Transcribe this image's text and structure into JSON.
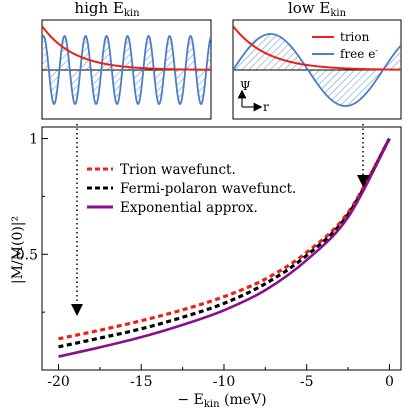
{
  "insets": {
    "left": {
      "title": "high E",
      "title_sub": "kin"
    },
    "right": {
      "title": "low E",
      "title_sub": "kin",
      "legend": [
        {
          "name": "trion",
          "color": "#e8221b"
        },
        {
          "name": "free e",
          "sup": "-",
          "color": "#4a7ec7"
        }
      ],
      "axis_y": "Ψ",
      "axis_x": "r"
    }
  },
  "chart_data": {
    "type": "line",
    "xlabel": "− E",
    "xlabel_sub": "kin",
    "xlabel_unit": " (meV)",
    "ylabel": "|M/M(0)|²",
    "xlim": [
      -21,
      0.7
    ],
    "ylim": [
      0,
      1.05
    ],
    "xticks": [
      -20,
      -15,
      -10,
      -5,
      0
    ],
    "xtick_labels": [
      "-20",
      "-15",
      "-10",
      "-5",
      "0"
    ],
    "yticks": [
      0.5,
      1
    ],
    "ytick_labels": [
      "0.5",
      "1"
    ],
    "legend_position": "upper-left",
    "series": [
      {
        "name": "Trion wavefunct.",
        "color": "#e8221b",
        "style": "dashed",
        "x": [
          -20,
          -17.5,
          -15,
          -12.5,
          -10,
          -7.5,
          -5,
          -2.5,
          0
        ],
        "y": [
          0.135,
          0.172,
          0.213,
          0.26,
          0.317,
          0.393,
          0.508,
          0.68,
          1.0
        ]
      },
      {
        "name": "Fermi-polaron wavefunct.",
        "color": "#000000",
        "style": "dashed",
        "x": [
          -20,
          -17.5,
          -15,
          -12.5,
          -10,
          -7.5,
          -5,
          -2.5,
          0
        ],
        "y": [
          0.1,
          0.138,
          0.178,
          0.228,
          0.288,
          0.373,
          0.495,
          0.672,
          1.0
        ]
      },
      {
        "name": "Exponential approx.",
        "color": "#8b0f8d",
        "style": "solid",
        "x": [
          -20,
          -17.5,
          -15,
          -12.5,
          -10,
          -7.5,
          -5,
          -2.5,
          0
        ],
        "y": [
          0.058,
          0.098,
          0.142,
          0.195,
          0.258,
          0.345,
          0.475,
          0.66,
          1.0
        ]
      }
    ]
  }
}
